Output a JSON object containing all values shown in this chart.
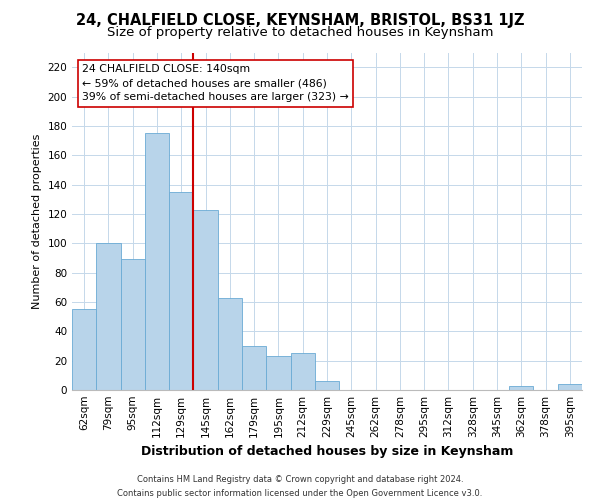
{
  "title": "24, CHALFIELD CLOSE, KEYNSHAM, BRISTOL, BS31 1JZ",
  "subtitle": "Size of property relative to detached houses in Keynsham",
  "xlabel": "Distribution of detached houses by size in Keynsham",
  "ylabel": "Number of detached properties",
  "bar_labels": [
    "62sqm",
    "79sqm",
    "95sqm",
    "112sqm",
    "129sqm",
    "145sqm",
    "162sqm",
    "179sqm",
    "195sqm",
    "212sqm",
    "229sqm",
    "245sqm",
    "262sqm",
    "278sqm",
    "295sqm",
    "312sqm",
    "328sqm",
    "345sqm",
    "362sqm",
    "378sqm",
    "395sqm"
  ],
  "bar_values": [
    55,
    100,
    89,
    175,
    135,
    123,
    63,
    30,
    23,
    25,
    6,
    0,
    0,
    0,
    0,
    0,
    0,
    0,
    3,
    0,
    4
  ],
  "bar_color": "#b8d4ea",
  "bar_edge_color": "#6aaad4",
  "highlight_bar_index": 5,
  "highlight_color": "#cc0000",
  "annotation_title": "24 CHALFIELD CLOSE: 140sqm",
  "annotation_line1": "← 59% of detached houses are smaller (486)",
  "annotation_line2": "39% of semi-detached houses are larger (323) →",
  "annotation_box_facecolor": "#ffffff",
  "annotation_box_edgecolor": "#cc0000",
  "ylim": [
    0,
    230
  ],
  "yticks": [
    0,
    20,
    40,
    60,
    80,
    100,
    120,
    140,
    160,
    180,
    200,
    220
  ],
  "footer_line1": "Contains HM Land Registry data © Crown copyright and database right 2024.",
  "footer_line2": "Contains public sector information licensed under the Open Government Licence v3.0.",
  "title_fontsize": 10.5,
  "subtitle_fontsize": 9.5,
  "xlabel_fontsize": 9,
  "ylabel_fontsize": 8,
  "tick_fontsize": 7.5,
  "footer_fontsize": 6,
  "annotation_fontsize": 7.8,
  "grid_color": "#c5d8ea",
  "bg_color": "#ffffff"
}
